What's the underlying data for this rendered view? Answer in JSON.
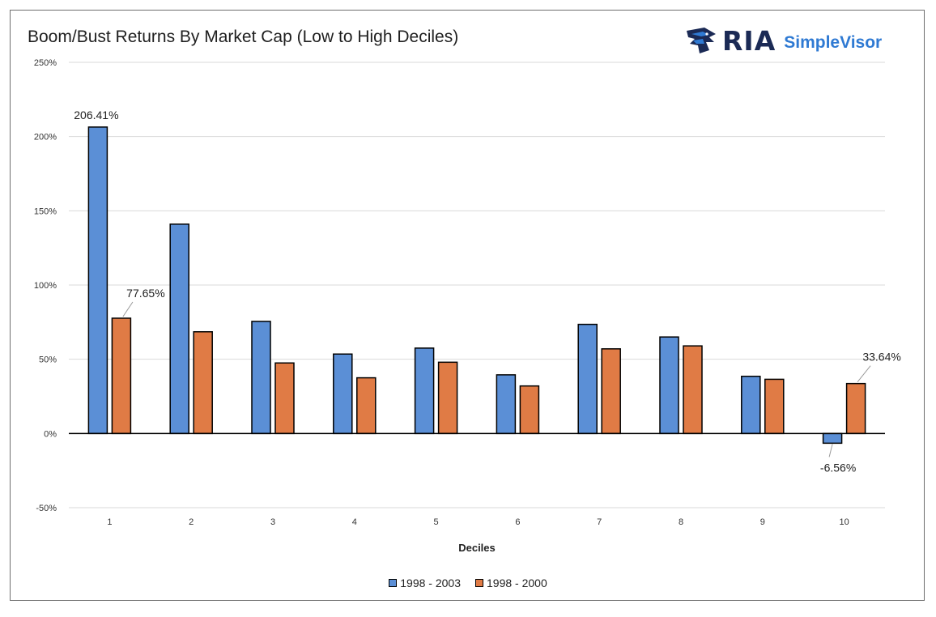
{
  "chart_data": {
    "type": "bar",
    "title": "Boom/Bust Returns By Market Cap (Low to High Deciles)",
    "xlabel": "Deciles",
    "ylabel": "",
    "categories": [
      "1",
      "2",
      "3",
      "4",
      "5",
      "6",
      "7",
      "8",
      "9",
      "10"
    ],
    "series": [
      {
        "name": "1998 - 2003",
        "color": "#5b8fd6",
        "values": [
          206.41,
          141,
          75.5,
          53.5,
          57.5,
          39.5,
          73.5,
          65,
          38.5,
          -6.56
        ]
      },
      {
        "name": "1998 - 2000",
        "color": "#e07b45",
        "values": [
          77.65,
          68.5,
          47.5,
          37.5,
          48,
          32,
          57,
          59,
          36.5,
          33.64
        ]
      }
    ],
    "ylim": [
      -50,
      250
    ],
    "yticks": [
      -50,
      0,
      50,
      100,
      150,
      200,
      250
    ],
    "ytick_labels": [
      "-50%",
      "0%",
      "50%",
      "100%",
      "150%",
      "200%",
      "250%"
    ],
    "grid": true,
    "legend": "bottom-center",
    "data_labels": [
      {
        "series": 0,
        "index": 0,
        "text": "206.41%"
      },
      {
        "series": 1,
        "index": 0,
        "text": "77.65%"
      },
      {
        "series": 0,
        "index": 9,
        "text": "-6.56%"
      },
      {
        "series": 1,
        "index": 9,
        "text": "33.64%"
      }
    ]
  },
  "brand": {
    "logo_icon": "eagle-head-icon",
    "primary": "RIA",
    "secondary": "SimpleVisor",
    "primary_color": "#1b2a55",
    "secondary_color": "#2f7ad3"
  }
}
